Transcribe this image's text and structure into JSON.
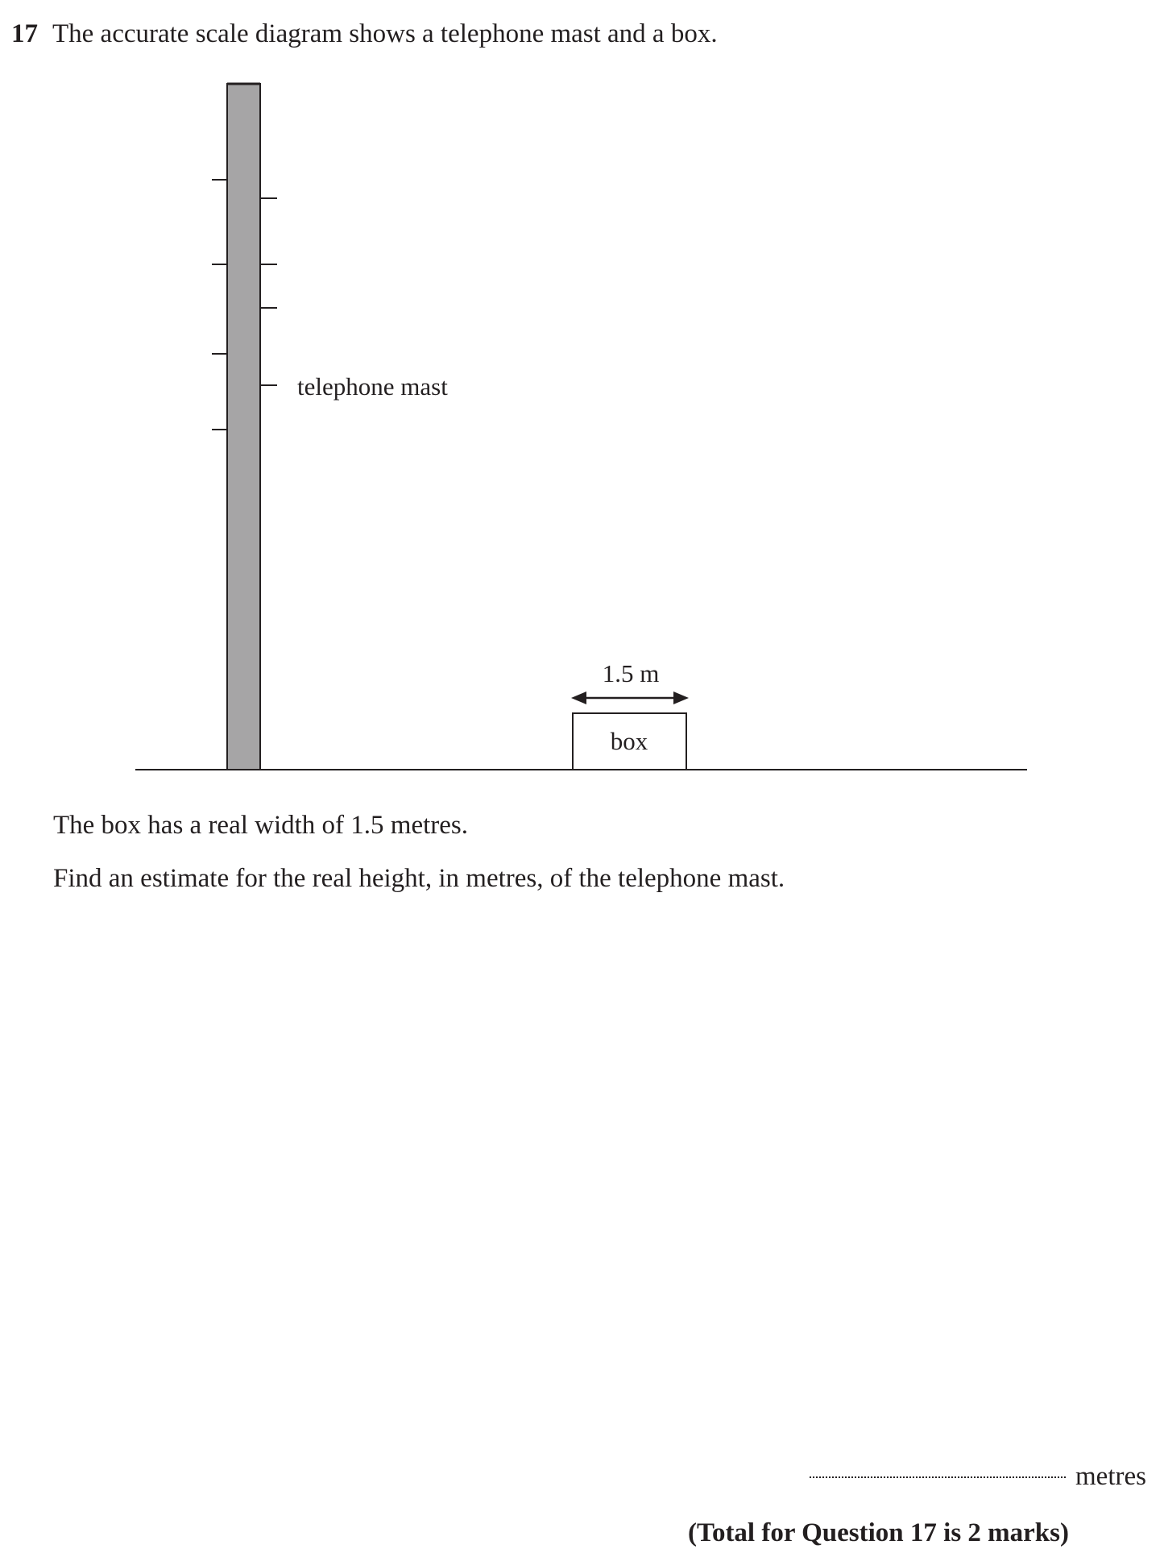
{
  "question": {
    "number": "17",
    "text": "The accurate scale diagram shows a telephone mast and a box."
  },
  "diagram": {
    "mast_label": "telephone mast",
    "box_label": "box",
    "dimension_label": "1.5 m",
    "colors": {
      "mast_fill": "#a6a5a6",
      "stroke": "#231f20"
    }
  },
  "body": {
    "line1": "The box has a real width of 1.5 metres.",
    "line2": "Find an estimate for the real height, in metres, of the telephone mast."
  },
  "answer": {
    "unit": "metres"
  },
  "total": "(Total for Question 17 is 2 marks)"
}
